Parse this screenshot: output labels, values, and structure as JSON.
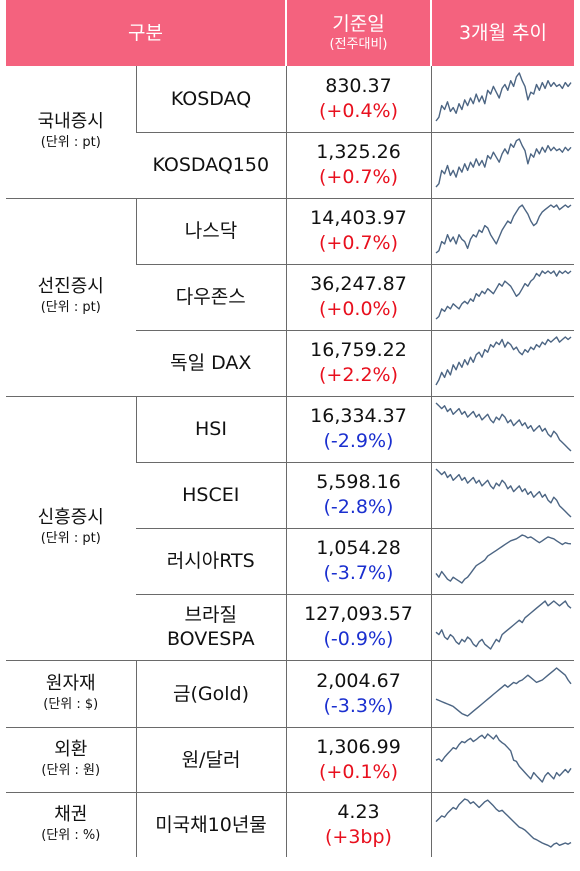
{
  "header": {
    "col_category": "구분",
    "col_value": "기준일",
    "col_value_sub": "(전주대비)",
    "col_trend": "3개월 추이"
  },
  "colors": {
    "header_bg": "#f4627e",
    "up": "#e8101e",
    "down": "#1a2fcf",
    "line": "#4c6583"
  },
  "groups": [
    {
      "name": "국내증시",
      "unit": "(단위 : pt)",
      "rows": [
        {
          "name": "KOSDAQ",
          "value": "830.37",
          "change": "(+0.4%)",
          "dir": "up",
          "trend": [
            74,
            76,
            82,
            80,
            84,
            79,
            81,
            78,
            83,
            80,
            85,
            82,
            86,
            83,
            88,
            84,
            87,
            83,
            90,
            88,
            92,
            89,
            86,
            91,
            93,
            90,
            95,
            92,
            97,
            99,
            95,
            92,
            85,
            89,
            88,
            93,
            90,
            94,
            91,
            95,
            92,
            94,
            92,
            93,
            91,
            94,
            92,
            94
          ]
        },
        {
          "name": "KOSDAQ150",
          "value": "1,325.26",
          "change": "(+0.7%)",
          "dir": "up",
          "trend": [
            70,
            72,
            80,
            78,
            83,
            77,
            80,
            76,
            82,
            79,
            84,
            80,
            85,
            82,
            87,
            83,
            86,
            82,
            89,
            87,
            91,
            88,
            85,
            90,
            93,
            90,
            96,
            94,
            98,
            99,
            95,
            92,
            84,
            90,
            88,
            93,
            90,
            94,
            91,
            95,
            92,
            94,
            92,
            93,
            91,
            94,
            92,
            94
          ]
        }
      ]
    },
    {
      "name": "선진증시",
      "unit": "(단위 : pt)",
      "rows": [
        {
          "name": "나스닥",
          "value": "14,403.97",
          "change": "(+0.7%)",
          "dir": "up",
          "trend": [
            78,
            79,
            83,
            82,
            86,
            83,
            85,
            82,
            86,
            84,
            83,
            80,
            84,
            86,
            85,
            88,
            87,
            90,
            89,
            86,
            84,
            82,
            85,
            88,
            90,
            92,
            91,
            94,
            96,
            98,
            99,
            97,
            95,
            92,
            90,
            91,
            94,
            96,
            97,
            98,
            99,
            98,
            99,
            97,
            98,
            99,
            98,
            99
          ]
        },
        {
          "name": "다우존스",
          "value": "36,247.87",
          "change": "(+0.0%)",
          "dir": "up",
          "trend": [
            80,
            81,
            84,
            83,
            85,
            84,
            86,
            85,
            84,
            86,
            87,
            86,
            88,
            87,
            90,
            89,
            91,
            90,
            92,
            91,
            90,
            92,
            94,
            93,
            95,
            94,
            93,
            91,
            89,
            90,
            92,
            94,
            93,
            95,
            96,
            98,
            97,
            99,
            98,
            99,
            98,
            99,
            97,
            99,
            98,
            99,
            98,
            99
          ]
        },
        {
          "name": "독일 DAX",
          "value": "16,759.22",
          "change": "(+2.2%)",
          "dir": "up",
          "trend": [
            80,
            82,
            85,
            83,
            86,
            84,
            88,
            86,
            89,
            87,
            90,
            88,
            91,
            89,
            92,
            93,
            91,
            94,
            93,
            96,
            95,
            97,
            96,
            98,
            95,
            97,
            96,
            94,
            95,
            93,
            92,
            94,
            93,
            95,
            94,
            96,
            95,
            97,
            96,
            98,
            97,
            98,
            99,
            97,
            98,
            99,
            98,
            99
          ]
        }
      ]
    },
    {
      "name": "신흥증시",
      "unit": "(단위 : pt)",
      "rows": [
        {
          "name": "HSI",
          "value": "16,334.37",
          "change": "(-2.9%)",
          "dir": "down",
          "trend": [
            98,
            97,
            96,
            97,
            95,
            96,
            94,
            95,
            96,
            94,
            95,
            93,
            94,
            95,
            93,
            94,
            92,
            93,
            94,
            92,
            91,
            93,
            92,
            94,
            93,
            91,
            92,
            90,
            91,
            92,
            90,
            91,
            89,
            90,
            88,
            89,
            90,
            88,
            89,
            87,
            86,
            88,
            87,
            85,
            84,
            83,
            82,
            81
          ]
        },
        {
          "name": "HSCEI",
          "value": "5,598.16",
          "change": "(-2.8%)",
          "dir": "down",
          "trend": [
            98,
            97,
            96,
            97,
            95,
            96,
            94,
            95,
            96,
            94,
            95,
            93,
            94,
            95,
            93,
            94,
            92,
            93,
            94,
            92,
            91,
            93,
            92,
            94,
            93,
            91,
            92,
            90,
            91,
            92,
            90,
            91,
            89,
            90,
            88,
            89,
            90,
            88,
            89,
            87,
            86,
            88,
            87,
            85,
            84,
            83,
            82,
            81
          ]
        },
        {
          "name": "러시아RTS",
          "value": "1,054.28",
          "change": "(-3.7%)",
          "dir": "down",
          "trend": [
            900,
            880,
            910,
            890,
            870,
            860,
            880,
            870,
            860,
            850,
            870,
            880,
            900,
            920,
            940,
            950,
            960,
            970,
            990,
            1000,
            1010,
            1020,
            1030,
            1040,
            1050,
            1060,
            1070,
            1075,
            1080,
            1090,
            1100,
            1095,
            1085,
            1090,
            1080,
            1070,
            1060,
            1070,
            1080,
            1090,
            1085,
            1080,
            1070,
            1060,
            1050,
            1060,
            1055,
            1054
          ]
        },
        {
          "name": "브라질\nBOVESPA",
          "value": "127,093.57",
          "change": "(-0.9%)",
          "dir": "down",
          "trend": [
            117,
            116,
            118,
            115,
            114,
            116,
            115,
            113,
            112,
            114,
            113,
            115,
            114,
            112,
            111,
            113,
            114,
            112,
            111,
            110,
            112,
            114,
            113,
            116,
            117,
            118,
            119,
            120,
            121,
            122,
            121,
            123,
            124,
            125,
            126,
            127,
            128,
            129,
            130,
            128,
            129,
            130,
            129,
            128,
            129,
            130,
            128,
            127
          ]
        }
      ]
    },
    {
      "name": "원자재",
      "unit": "(단위 : $)",
      "rows": [
        {
          "name": "금(Gold)",
          "value": "2,004.67",
          "change": "(-3.3%)",
          "dir": "down",
          "trend": [
            1940,
            1935,
            1930,
            1925,
            1920,
            1915,
            1910,
            1900,
            1890,
            1880,
            1875,
            1870,
            1880,
            1890,
            1900,
            1910,
            1920,
            1930,
            1940,
            1950,
            1960,
            1970,
            1980,
            1990,
            2000,
            1990,
            2000,
            2010,
            2005,
            2015,
            2020,
            2030,
            2040,
            2030,
            2020,
            2010,
            2015,
            2020,
            2030,
            2040,
            2050,
            2060,
            2070,
            2060,
            2050,
            2040,
            2020,
            2004
          ]
        }
      ]
    },
    {
      "name": "외환",
      "unit": "(단위 : 원)",
      "rows": [
        {
          "name": "원/달러",
          "value": "1,306.99",
          "change": "(+0.1%)",
          "dir": "up",
          "trend": [
            1320,
            1322,
            1318,
            1325,
            1330,
            1335,
            1340,
            1338,
            1345,
            1350,
            1348,
            1352,
            1355,
            1350,
            1353,
            1357,
            1360,
            1355,
            1362,
            1358,
            1354,
            1360,
            1352,
            1348,
            1345,
            1340,
            1335,
            1320,
            1318,
            1310,
            1305,
            1300,
            1295,
            1290,
            1300,
            1295,
            1290,
            1285,
            1295,
            1300,
            1295,
            1290,
            1300,
            1295,
            1300,
            1305,
            1300,
            1307
          ]
        }
      ]
    },
    {
      "name": "채권",
      "unit": "(단위 : %)",
      "rows": [
        {
          "name": "미국채10년물",
          "value": "4.23",
          "change": "(+3bp)",
          "dir": "up",
          "trend": [
            4.6,
            4.65,
            4.7,
            4.68,
            4.75,
            4.8,
            4.85,
            4.82,
            4.9,
            4.95,
            5.0,
            4.98,
            4.92,
            4.95,
            4.9,
            4.85,
            4.9,
            4.95,
            4.98,
            4.93,
            4.88,
            4.82,
            4.78,
            4.8,
            4.75,
            4.7,
            4.65,
            4.6,
            4.55,
            4.5,
            4.48,
            4.45,
            4.4,
            4.35,
            4.3,
            4.28,
            4.25,
            4.22,
            4.2,
            4.18,
            4.15,
            4.2,
            4.22,
            4.18,
            4.2,
            4.22,
            4.2,
            4.23
          ]
        }
      ]
    }
  ]
}
